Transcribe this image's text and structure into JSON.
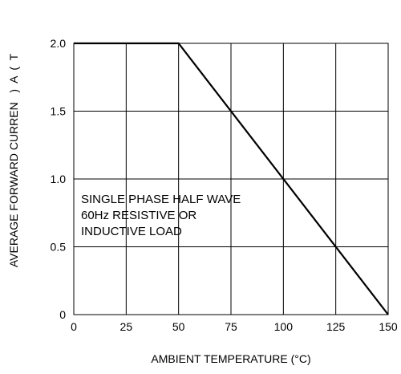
{
  "chart_data": {
    "type": "line",
    "xlabel": "AMBIENT TEMPERATURE (°C)",
    "ylabel": "AVERAGE FORWARD CURREN   )  A  (  T",
    "x_ticks": [
      "0",
      "25",
      "50",
      "75",
      "100",
      "125",
      "150"
    ],
    "y_ticks": [
      "0",
      "0.5",
      "1.0",
      "1.5",
      "2.0"
    ],
    "xlim": [
      0,
      150
    ],
    "ylim": [
      0,
      2.0
    ],
    "grid": true,
    "series": [
      {
        "x": [
          0,
          50,
          150
        ],
        "y": [
          2.0,
          2.0,
          0
        ]
      }
    ],
    "annotation": [
      "SINGLE PHASE HALF WAVE",
      "60Hz RESISTIVE OR",
      "INDUCTIVE LOAD"
    ],
    "colors": {
      "line": "#000000",
      "grid": "#000000"
    }
  }
}
